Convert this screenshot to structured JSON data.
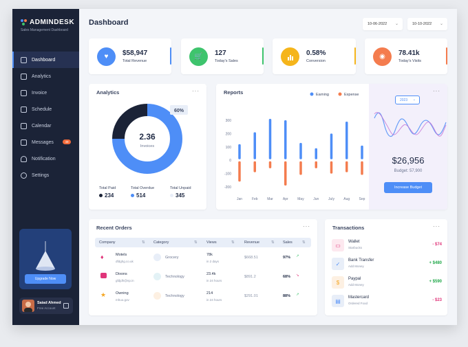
{
  "app": {
    "name": "ADMINDESK",
    "tagline": "Sales Management Dashboard"
  },
  "sidebar": {
    "items": [
      {
        "label": "Dashboard",
        "icon": "grid-icon",
        "active": true
      },
      {
        "label": "Analytics",
        "icon": "analytics-icon"
      },
      {
        "label": "Invoice",
        "icon": "invoice-icon"
      },
      {
        "label": "Schedule",
        "icon": "schedule-icon"
      },
      {
        "label": "Calendar",
        "icon": "calendar-icon"
      },
      {
        "label": "Messages",
        "icon": "message-icon",
        "badge": "49"
      },
      {
        "label": "Notification",
        "icon": "bell-icon"
      },
      {
        "label": "Settings",
        "icon": "gear-icon"
      }
    ],
    "promo_button": "Upgrade Now",
    "user": {
      "name": "Saiad Ahmed",
      "role": "Free Account"
    }
  },
  "header": {
    "title": "Dashboard",
    "date_from": "10-06-2022",
    "date_to": "10-10-2022"
  },
  "stats": [
    {
      "value": "$58,947",
      "label": "Total Revenue",
      "color": "#4e8ef7",
      "icon": "heart-icon"
    },
    {
      "value": "127",
      "label": "Today's Sales",
      "color": "#3ec46d",
      "icon": "cart-icon"
    },
    {
      "value": "0.58%",
      "label": "Conversion",
      "color": "#f5b51b",
      "icon": "bar-chart-icon"
    },
    {
      "value": "78.41k",
      "label": "Today's Visits",
      "color": "#f47c4e",
      "icon": "eye-icon"
    }
  ],
  "analytics": {
    "title": "Analytics",
    "center_value": "2.36",
    "center_label": "Invoices",
    "callout": "60%",
    "legend": [
      {
        "label": "Total Paid",
        "value": "234",
        "color": "#1b2337"
      },
      {
        "label": "Total Overdue",
        "value": "514",
        "color": "#4e8ef7"
      },
      {
        "label": "Total Unpaid",
        "value": "345",
        "color": "#e8eef8"
      }
    ]
  },
  "chart_data": {
    "type": "bar",
    "title": "Reports",
    "categories": [
      "Jan",
      "Feb",
      "Mar",
      "Apr",
      "May",
      "Jun",
      "July",
      "Aug",
      "Sep"
    ],
    "series": [
      {
        "name": "Earning",
        "color": "#4e8ef7",
        "values": [
          120,
          210,
          310,
          300,
          130,
          90,
          200,
          290,
          110
        ]
      },
      {
        "name": "Expense",
        "color": "#f47c4e",
        "values": [
          -160,
          -90,
          -60,
          -190,
          -110,
          -60,
          -100,
          -90,
          -110
        ]
      }
    ],
    "yticks": [
      "300",
      "200",
      "100",
      "0",
      "-100",
      "-200"
    ],
    "ylim": [
      -200,
      300
    ]
  },
  "budget": {
    "year": "2023",
    "amount": "$26,956",
    "label": "Budget: 57,900",
    "button": "Increase Budget"
  },
  "orders": {
    "title": "Recent Orders",
    "columns": [
      "Company",
      "Category",
      "Views",
      "Revenue",
      "Sales"
    ],
    "rows": [
      {
        "company": "Motels",
        "domain": "dfdghg.co.uk",
        "category": "Grocery",
        "views": "78k",
        "period": "in 2 days",
        "revenue": "$668.51",
        "sales": "97%",
        "trend": "up"
      },
      {
        "company": "Dixons",
        "domain": "gfdjdh@np.in",
        "category": "Technology",
        "views": "23.4k",
        "period": "in 24 hours",
        "revenue": "$891.2",
        "sales": "68%",
        "trend": "down"
      },
      {
        "company": "Owning",
        "domain": "mhuo.gov",
        "category": "Technology",
        "views": "214",
        "period": "in 24 hours",
        "revenue": "$291.01",
        "sales": "88%",
        "trend": "up"
      }
    ]
  },
  "transactions": {
    "title": "Transactions",
    "items": [
      {
        "name": "Wallet",
        "sub": "Starbucks",
        "amount": "- $74",
        "color": "#e0357a",
        "icon": "wallet-icon"
      },
      {
        "name": "Bank Transfer",
        "sub": "Add Money",
        "amount": "+ $480",
        "color": "#21a84a",
        "icon": "check-icon"
      },
      {
        "name": "Paypal",
        "sub": "Add Money",
        "amount": "+ $590",
        "color": "#21a84a",
        "icon": "dollar-icon"
      },
      {
        "name": "Mastercard",
        "sub": "Ordered Food",
        "amount": "- $23",
        "color": "#e0357a",
        "icon": "card-icon"
      }
    ]
  }
}
